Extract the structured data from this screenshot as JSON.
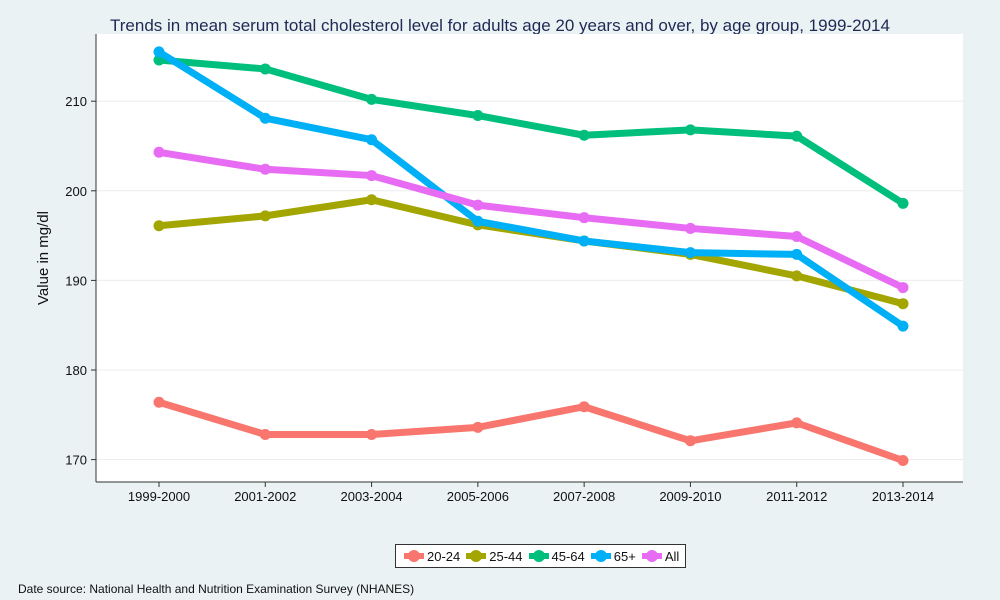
{
  "chart_data": {
    "type": "line",
    "title": "Trends in mean serum total cholesterol level for adults age 20 years and over, by age group, 1999-2014",
    "ylabel": "Value in mg/dl",
    "xlabel": "",
    "categories": [
      "1999-2000",
      "2001-2002",
      "2003-2004",
      "2005-2006",
      "2007-2008",
      "2009-2010",
      "2011-2012",
      "2013-2014"
    ],
    "yticks": [
      170,
      180,
      190,
      200,
      210
    ],
    "ylim": [
      167.5,
      217.5
    ],
    "grid": true,
    "legend_position": "bottom",
    "series": [
      {
        "name": "20-24",
        "color": "#f8766d",
        "values": [
          176.4,
          172.8,
          172.8,
          173.6,
          175.9,
          172.1,
          174.1,
          169.9
        ]
      },
      {
        "name": "25-44",
        "color": "#a3a500",
        "values": [
          196.1,
          197.2,
          199.0,
          196.2,
          194.4,
          192.9,
          190.5,
          187.4
        ]
      },
      {
        "name": "45-64",
        "color": "#00bf7d",
        "values": [
          214.6,
          213.6,
          210.2,
          208.4,
          206.2,
          206.8,
          206.1,
          198.6
        ]
      },
      {
        "name": "65+",
        "color": "#00b0f6",
        "values": [
          215.5,
          208.1,
          205.7,
          196.6,
          194.4,
          193.1,
          192.9,
          184.9
        ]
      },
      {
        "name": "All",
        "color": "#e76bf3",
        "values": [
          204.3,
          202.4,
          201.7,
          198.4,
          197.0,
          195.8,
          194.9,
          189.2
        ]
      }
    ]
  },
  "source_note": "Date source: National Health and Nutrition Examination Survey (NHANES)"
}
